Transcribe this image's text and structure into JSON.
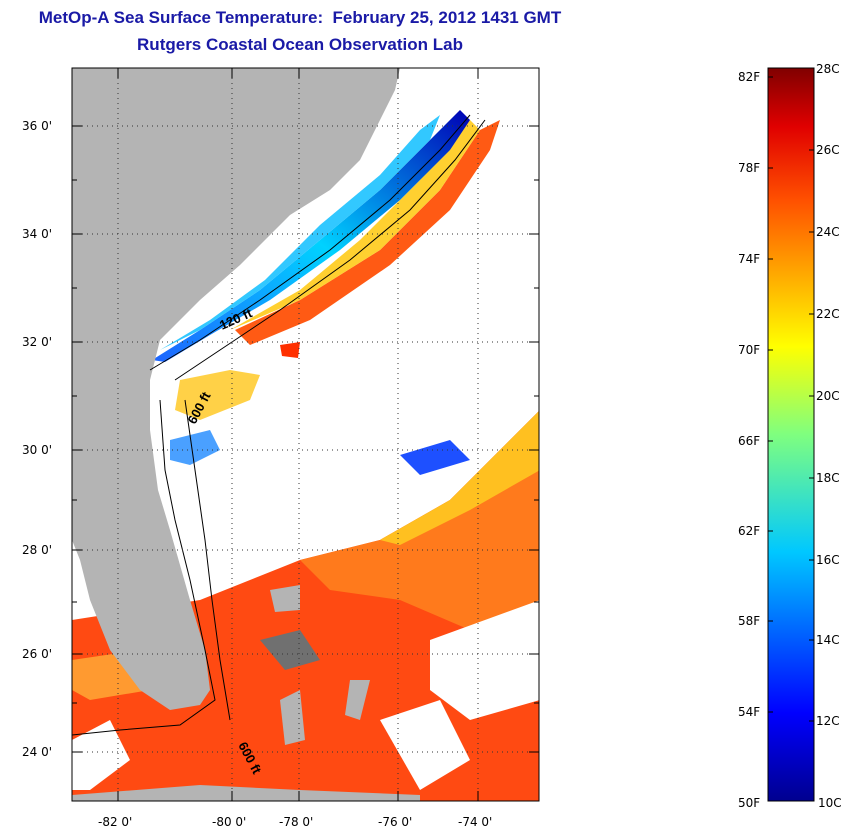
{
  "title": "MetOp-A Sea Surface Temperature:  February 25, 2012 1431 GMT",
  "subtitle": "Rutgers Coastal Ocean Observation Lab",
  "lat_labels": [
    "36 0'",
    "34 0'",
    "32 0'",
    "30 0'",
    "28 0'",
    "26 0'",
    "24 0'"
  ],
  "lon_labels": [
    "-82 0'",
    "-80 0'",
    "-78 0'",
    "-76 0'",
    "-74 0'"
  ],
  "isobath_labels": [
    "120 ft",
    "600 ft",
    "600 ft"
  ],
  "colorbar": {
    "fahrenheit": [
      "82F",
      "78F",
      "74F",
      "70F",
      "66F",
      "62F",
      "58F",
      "54F",
      "50F"
    ],
    "celsius": [
      "28C",
      "26C",
      "24C",
      "22C",
      "20C",
      "18C",
      "16C",
      "14C",
      "12C",
      "10C"
    ]
  },
  "colors": {
    "title": "#1a1aa6",
    "land": "#b4b4b4"
  }
}
